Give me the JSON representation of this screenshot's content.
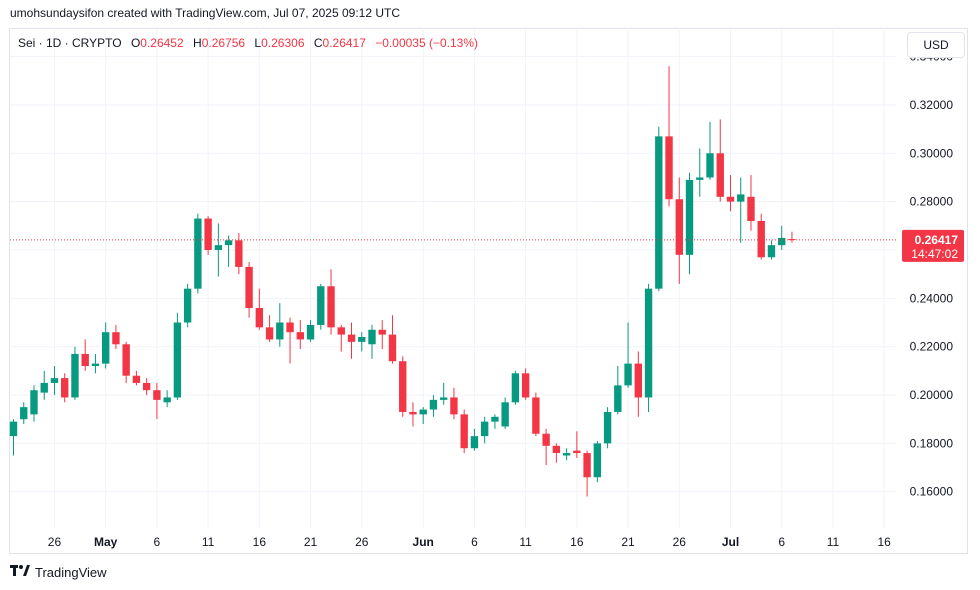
{
  "header": {
    "credit": "umohsundaysifon created with TradingView.com, Jul 07, 2025 09:12 UTC"
  },
  "legend": {
    "symbol": "Sei · 1D · CRYPTO",
    "open_label": "O",
    "open": "0.26452",
    "high_label": "H",
    "high": "0.26756",
    "low_label": "L",
    "low": "0.26306",
    "close_label": "C",
    "close": "0.26417",
    "change": "−0.00035 (−0.13%)"
  },
  "currency_button": "USD",
  "price_badge": {
    "price": "0.26417",
    "countdown": "14:47:02"
  },
  "footer": {
    "brand": "TradingView"
  },
  "colors": {
    "up": "#089981",
    "down": "#f23645",
    "grid": "#f0f3fa",
    "last_line": "#f23645"
  },
  "chart_data": {
    "type": "candlestick",
    "y_axis": {
      "min": 0.145,
      "max": 0.351,
      "ticks": [
        "0.34000",
        "0.32000",
        "0.30000",
        "0.28000",
        "0.26000",
        "0.24000",
        "0.22000",
        "0.20000",
        "0.18000",
        "0.16000"
      ],
      "tick_values": [
        0.34,
        0.32,
        0.3,
        0.28,
        0.26,
        0.24,
        0.22,
        0.2,
        0.18,
        0.16
      ]
    },
    "x_axis": {
      "start_date": "2025-04-22",
      "end_date": "2025-07-17",
      "tick_labels": [
        {
          "date": "2025-04-26",
          "label": "26"
        },
        {
          "date": "2025-05-01",
          "label": "May"
        },
        {
          "date": "2025-05-06",
          "label": "6"
        },
        {
          "date": "2025-05-11",
          "label": "11"
        },
        {
          "date": "2025-05-16",
          "label": "16"
        },
        {
          "date": "2025-05-21",
          "label": "21"
        },
        {
          "date": "2025-05-26",
          "label": "26"
        },
        {
          "date": "2025-06-01",
          "label": "Jun"
        },
        {
          "date": "2025-06-06",
          "label": "6"
        },
        {
          "date": "2025-06-11",
          "label": "11"
        },
        {
          "date": "2025-06-16",
          "label": "16"
        },
        {
          "date": "2025-06-21",
          "label": "21"
        },
        {
          "date": "2025-06-26",
          "label": "26"
        },
        {
          "date": "2025-07-01",
          "label": "Jul"
        },
        {
          "date": "2025-07-06",
          "label": "6"
        },
        {
          "date": "2025-07-11",
          "label": "11"
        },
        {
          "date": "2025-07-16",
          "label": "16"
        }
      ]
    },
    "last_price": 0.26417,
    "candles": [
      {
        "d": "2025-04-22",
        "o": 0.183,
        "h": 0.19,
        "l": 0.175,
        "c": 0.189
      },
      {
        "d": "2025-04-23",
        "o": 0.19,
        "h": 0.197,
        "l": 0.188,
        "c": 0.195
      },
      {
        "d": "2025-04-24",
        "o": 0.192,
        "h": 0.204,
        "l": 0.189,
        "c": 0.202
      },
      {
        "d": "2025-04-25",
        "o": 0.201,
        "h": 0.21,
        "l": 0.198,
        "c": 0.205
      },
      {
        "d": "2025-04-26",
        "o": 0.205,
        "h": 0.212,
        "l": 0.2,
        "c": 0.207
      },
      {
        "d": "2025-04-27",
        "o": 0.207,
        "h": 0.209,
        "l": 0.197,
        "c": 0.199
      },
      {
        "d": "2025-04-28",
        "o": 0.199,
        "h": 0.22,
        "l": 0.198,
        "c": 0.217
      },
      {
        "d": "2025-04-29",
        "o": 0.217,
        "h": 0.223,
        "l": 0.21,
        "c": 0.212
      },
      {
        "d": "2025-04-30",
        "o": 0.212,
        "h": 0.217,
        "l": 0.209,
        "c": 0.213
      },
      {
        "d": "2025-05-01",
        "o": 0.213,
        "h": 0.23,
        "l": 0.211,
        "c": 0.226
      },
      {
        "d": "2025-05-02",
        "o": 0.226,
        "h": 0.229,
        "l": 0.219,
        "c": 0.221
      },
      {
        "d": "2025-05-03",
        "o": 0.221,
        "h": 0.222,
        "l": 0.205,
        "c": 0.208
      },
      {
        "d": "2025-05-04",
        "o": 0.208,
        "h": 0.21,
        "l": 0.204,
        "c": 0.205
      },
      {
        "d": "2025-05-05",
        "o": 0.205,
        "h": 0.207,
        "l": 0.2,
        "c": 0.202
      },
      {
        "d": "2025-05-06",
        "o": 0.202,
        "h": 0.205,
        "l": 0.19,
        "c": 0.198
      },
      {
        "d": "2025-05-07",
        "o": 0.197,
        "h": 0.202,
        "l": 0.195,
        "c": 0.199
      },
      {
        "d": "2025-05-08",
        "o": 0.199,
        "h": 0.234,
        "l": 0.198,
        "c": 0.23
      },
      {
        "d": "2025-05-09",
        "o": 0.23,
        "h": 0.246,
        "l": 0.228,
        "c": 0.244
      },
      {
        "d": "2025-05-10",
        "o": 0.244,
        "h": 0.275,
        "l": 0.242,
        "c": 0.273
      },
      {
        "d": "2025-05-11",
        "o": 0.273,
        "h": 0.274,
        "l": 0.258,
        "c": 0.26
      },
      {
        "d": "2025-05-12",
        "o": 0.26,
        "h": 0.271,
        "l": 0.249,
        "c": 0.262
      },
      {
        "d": "2025-05-13",
        "o": 0.262,
        "h": 0.266,
        "l": 0.253,
        "c": 0.264
      },
      {
        "d": "2025-05-14",
        "o": 0.264,
        "h": 0.267,
        "l": 0.25,
        "c": 0.253
      },
      {
        "d": "2025-05-15",
        "o": 0.253,
        "h": 0.255,
        "l": 0.232,
        "c": 0.236
      },
      {
        "d": "2025-05-16",
        "o": 0.236,
        "h": 0.244,
        "l": 0.227,
        "c": 0.228
      },
      {
        "d": "2025-05-17",
        "o": 0.228,
        "h": 0.233,
        "l": 0.222,
        "c": 0.223
      },
      {
        "d": "2025-05-18",
        "o": 0.223,
        "h": 0.238,
        "l": 0.22,
        "c": 0.23
      },
      {
        "d": "2025-05-19",
        "o": 0.23,
        "h": 0.232,
        "l": 0.213,
        "c": 0.226
      },
      {
        "d": "2025-05-20",
        "o": 0.226,
        "h": 0.231,
        "l": 0.219,
        "c": 0.223
      },
      {
        "d": "2025-05-21",
        "o": 0.223,
        "h": 0.231,
        "l": 0.222,
        "c": 0.229
      },
      {
        "d": "2025-05-22",
        "o": 0.229,
        "h": 0.246,
        "l": 0.227,
        "c": 0.245
      },
      {
        "d": "2025-05-23",
        "o": 0.245,
        "h": 0.252,
        "l": 0.225,
        "c": 0.228
      },
      {
        "d": "2025-05-24",
        "o": 0.228,
        "h": 0.229,
        "l": 0.218,
        "c": 0.225
      },
      {
        "d": "2025-05-25",
        "o": 0.225,
        "h": 0.23,
        "l": 0.215,
        "c": 0.222
      },
      {
        "d": "2025-05-26",
        "o": 0.222,
        "h": 0.226,
        "l": 0.218,
        "c": 0.224
      },
      {
        "d": "2025-05-27",
        "o": 0.221,
        "h": 0.229,
        "l": 0.215,
        "c": 0.227
      },
      {
        "d": "2025-05-28",
        "o": 0.227,
        "h": 0.231,
        "l": 0.219,
        "c": 0.225
      },
      {
        "d": "2025-05-29",
        "o": 0.225,
        "h": 0.233,
        "l": 0.213,
        "c": 0.214
      },
      {
        "d": "2025-05-30",
        "o": 0.214,
        "h": 0.216,
        "l": 0.191,
        "c": 0.193
      },
      {
        "d": "2025-05-31",
        "o": 0.193,
        "h": 0.197,
        "l": 0.187,
        "c": 0.192
      },
      {
        "d": "2025-06-01",
        "o": 0.192,
        "h": 0.195,
        "l": 0.188,
        "c": 0.194
      },
      {
        "d": "2025-06-02",
        "o": 0.194,
        "h": 0.2,
        "l": 0.191,
        "c": 0.198
      },
      {
        "d": "2025-06-03",
        "o": 0.198,
        "h": 0.205,
        "l": 0.196,
        "c": 0.199
      },
      {
        "d": "2025-06-04",
        "o": 0.199,
        "h": 0.203,
        "l": 0.19,
        "c": 0.192
      },
      {
        "d": "2025-06-05",
        "o": 0.192,
        "h": 0.194,
        "l": 0.176,
        "c": 0.178
      },
      {
        "d": "2025-06-06",
        "o": 0.178,
        "h": 0.186,
        "l": 0.177,
        "c": 0.183
      },
      {
        "d": "2025-06-07",
        "o": 0.183,
        "h": 0.191,
        "l": 0.18,
        "c": 0.189
      },
      {
        "d": "2025-06-08",
        "o": 0.189,
        "h": 0.192,
        "l": 0.186,
        "c": 0.191
      },
      {
        "d": "2025-06-09",
        "o": 0.187,
        "h": 0.199,
        "l": 0.186,
        "c": 0.197
      },
      {
        "d": "2025-06-10",
        "o": 0.197,
        "h": 0.21,
        "l": 0.196,
        "c": 0.209
      },
      {
        "d": "2025-06-11",
        "o": 0.209,
        "h": 0.211,
        "l": 0.198,
        "c": 0.199
      },
      {
        "d": "2025-06-12",
        "o": 0.199,
        "h": 0.201,
        "l": 0.183,
        "c": 0.184
      },
      {
        "d": "2025-06-13",
        "o": 0.184,
        "h": 0.186,
        "l": 0.171,
        "c": 0.179
      },
      {
        "d": "2025-06-14",
        "o": 0.179,
        "h": 0.18,
        "l": 0.172,
        "c": 0.176
      },
      {
        "d": "2025-06-15",
        "o": 0.175,
        "h": 0.178,
        "l": 0.173,
        "c": 0.176
      },
      {
        "d": "2025-06-16",
        "o": 0.177,
        "h": 0.185,
        "l": 0.174,
        "c": 0.176
      },
      {
        "d": "2025-06-17",
        "o": 0.176,
        "h": 0.177,
        "l": 0.158,
        "c": 0.166
      },
      {
        "d": "2025-06-18",
        "o": 0.166,
        "h": 0.181,
        "l": 0.164,
        "c": 0.18
      },
      {
        "d": "2025-06-19",
        "o": 0.18,
        "h": 0.195,
        "l": 0.178,
        "c": 0.193
      },
      {
        "d": "2025-06-20",
        "o": 0.193,
        "h": 0.212,
        "l": 0.192,
        "c": 0.204
      },
      {
        "d": "2025-06-21",
        "o": 0.204,
        "h": 0.23,
        "l": 0.203,
        "c": 0.213
      },
      {
        "d": "2025-06-22",
        "o": 0.213,
        "h": 0.218,
        "l": 0.191,
        "c": 0.199
      },
      {
        "d": "2025-06-23",
        "o": 0.199,
        "h": 0.246,
        "l": 0.193,
        "c": 0.244
      },
      {
        "d": "2025-06-24",
        "o": 0.244,
        "h": 0.311,
        "l": 0.243,
        "c": 0.307
      },
      {
        "d": "2025-06-25",
        "o": 0.307,
        "h": 0.336,
        "l": 0.278,
        "c": 0.281
      },
      {
        "d": "2025-06-26",
        "o": 0.281,
        "h": 0.29,
        "l": 0.246,
        "c": 0.258
      },
      {
        "d": "2025-06-27",
        "o": 0.258,
        "h": 0.292,
        "l": 0.25,
        "c": 0.289
      },
      {
        "d": "2025-06-28",
        "o": 0.289,
        "h": 0.302,
        "l": 0.282,
        "c": 0.29
      },
      {
        "d": "2025-06-29",
        "o": 0.29,
        "h": 0.313,
        "l": 0.289,
        "c": 0.3
      },
      {
        "d": "2025-06-30",
        "o": 0.3,
        "h": 0.314,
        "l": 0.28,
        "c": 0.282
      },
      {
        "d": "2025-07-01",
        "o": 0.282,
        "h": 0.291,
        "l": 0.276,
        "c": 0.28
      },
      {
        "d": "2025-07-02",
        "o": 0.28,
        "h": 0.29,
        "l": 0.263,
        "c": 0.283
      },
      {
        "d": "2025-07-03",
        "o": 0.282,
        "h": 0.291,
        "l": 0.268,
        "c": 0.272
      },
      {
        "d": "2025-07-04",
        "o": 0.272,
        "h": 0.275,
        "l": 0.256,
        "c": 0.257
      },
      {
        "d": "2025-07-05",
        "o": 0.257,
        "h": 0.264,
        "l": 0.256,
        "c": 0.262
      },
      {
        "d": "2025-07-06",
        "o": 0.262,
        "h": 0.27,
        "l": 0.26,
        "c": 0.265
      },
      {
        "d": "2025-07-07",
        "o": 0.26452,
        "h": 0.26756,
        "l": 0.26306,
        "c": 0.26417
      }
    ]
  }
}
